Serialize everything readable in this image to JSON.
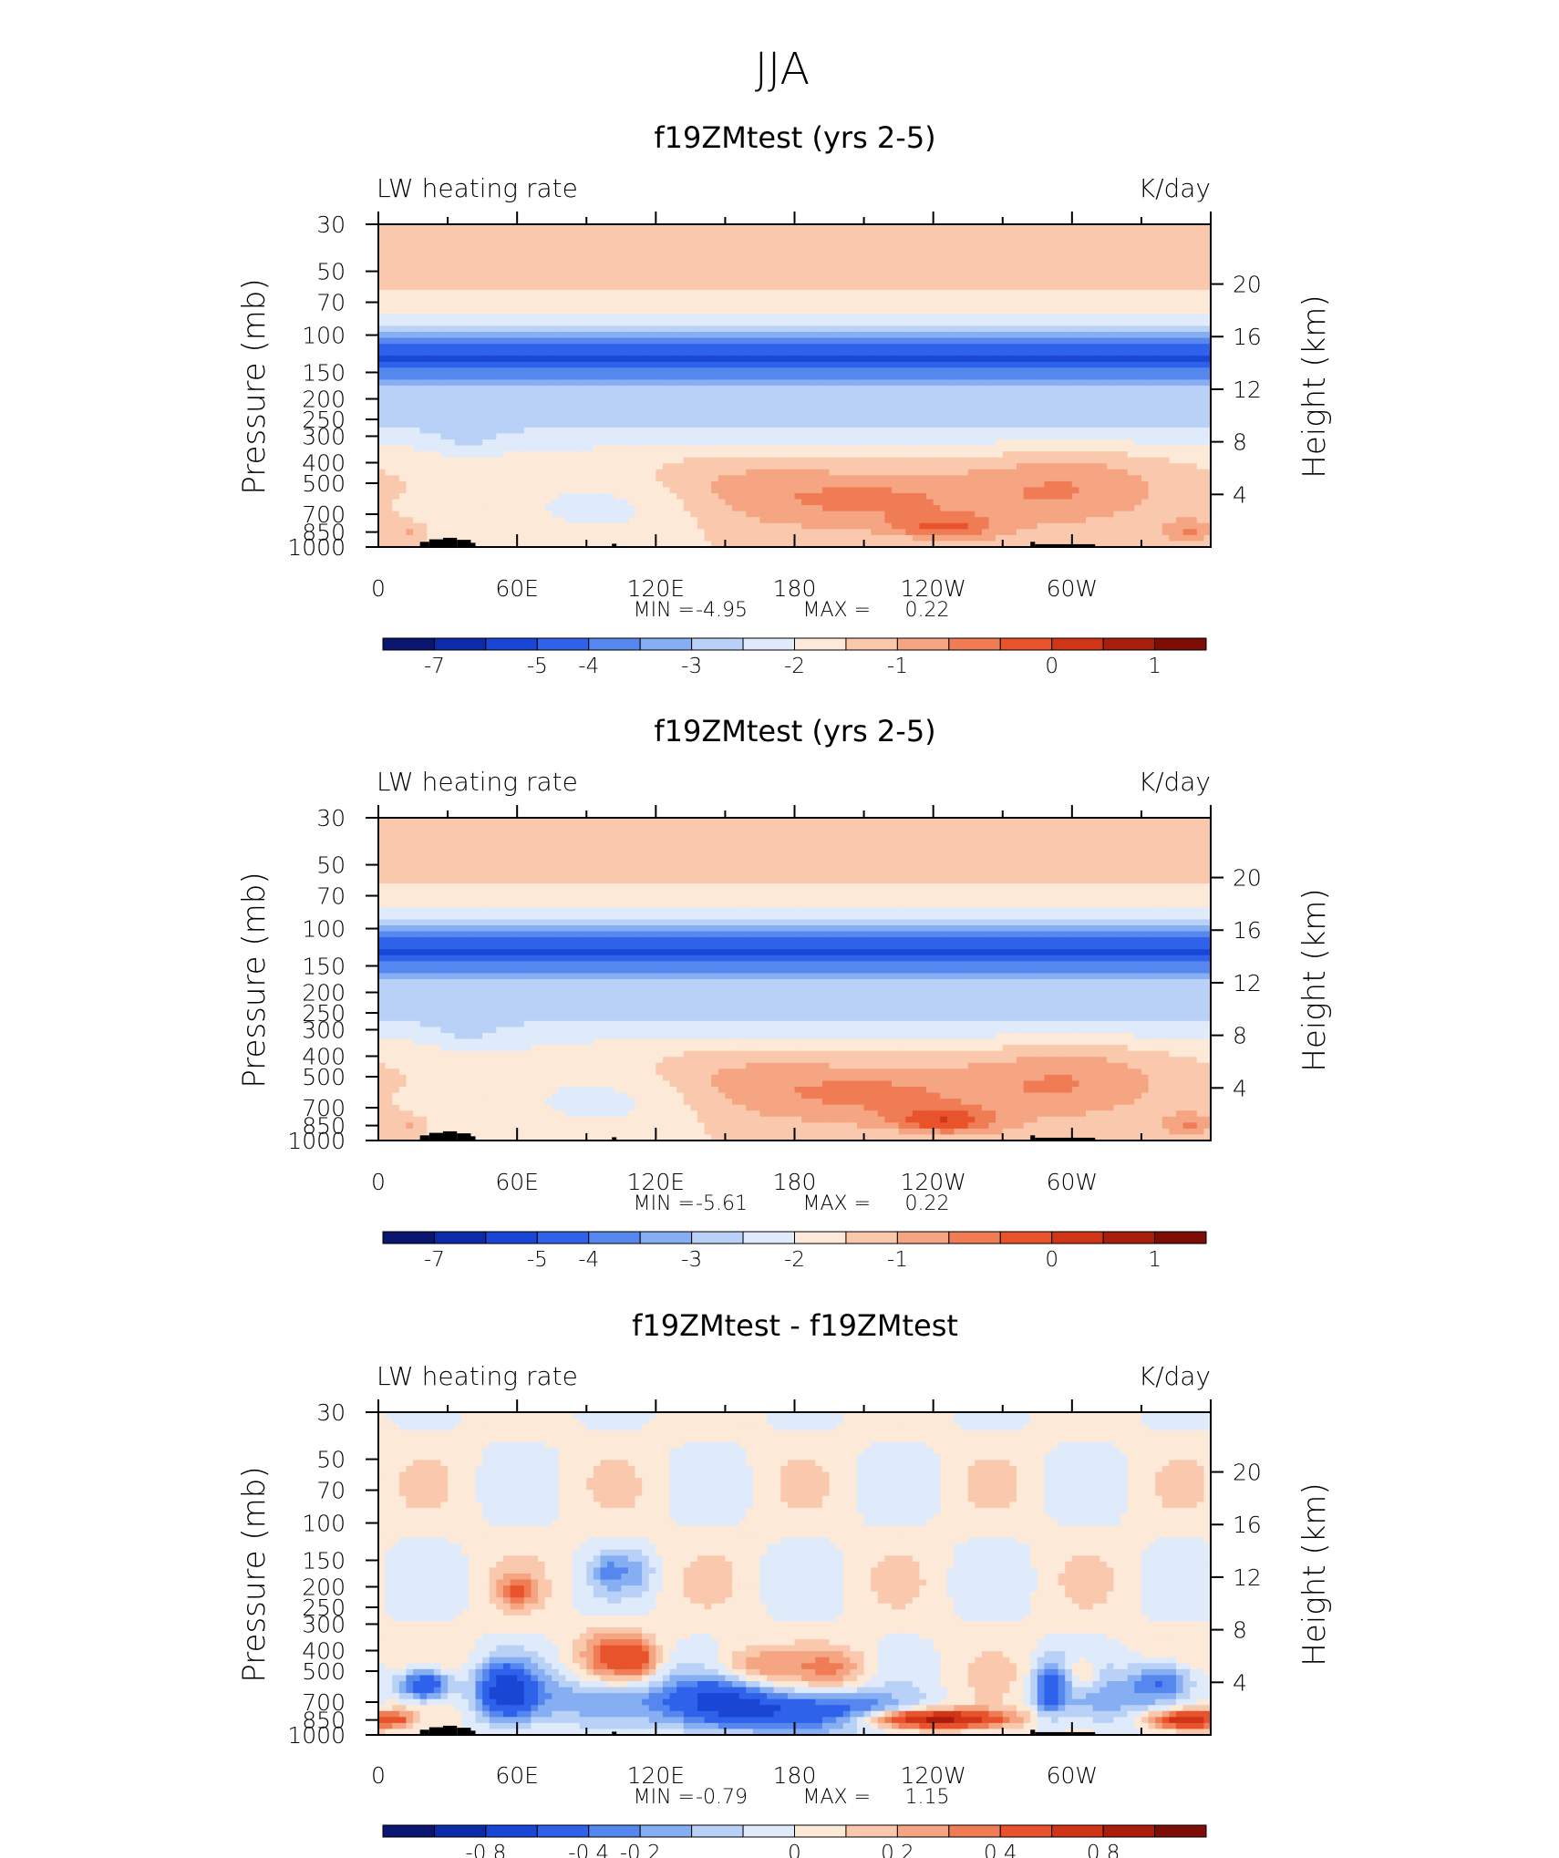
{
  "figure_title": "JJA",
  "chart_data": [
    {
      "type": "heatmap",
      "title": "f19ZMtest (yrs 2-5)",
      "left_label": "LW heating rate",
      "right_label": "K/day",
      "ylabel": "Pressure (mb)",
      "ylabel_right": "Height (km)",
      "x_ticks": [
        "0",
        "60E",
        "120E",
        "180",
        "120W",
        "60W"
      ],
      "x_range_deg": [
        0,
        360
      ],
      "pressure_ticks": [
        30,
        50,
        70,
        100,
        150,
        200,
        250,
        300,
        400,
        500,
        700,
        850,
        1000
      ],
      "pressure_range_mb": [
        30,
        1000
      ],
      "height_ticks_km": [
        20,
        16,
        12,
        8,
        4
      ],
      "stats_text": {
        "min_label": "MIN =",
        "min": "-4.95",
        "max_label": "MAX =",
        "max": "0.22"
      },
      "colorbar_labels": [
        "-7",
        "-5",
        "-4",
        "-3",
        "-2",
        "-1",
        "0",
        "1"
      ],
      "field_kind": "abs",
      "min": -4.95,
      "max": 0.22
    },
    {
      "type": "heatmap",
      "title": "f19ZMtest (yrs 2-5)",
      "left_label": "LW heating rate",
      "right_label": "K/day",
      "ylabel": "Pressure (mb)",
      "ylabel_right": "Height (km)",
      "x_ticks": [
        "0",
        "60E",
        "120E",
        "180",
        "120W",
        "60W"
      ],
      "x_range_deg": [
        0,
        360
      ],
      "pressure_ticks": [
        30,
        50,
        70,
        100,
        150,
        200,
        250,
        300,
        400,
        500,
        700,
        850,
        1000
      ],
      "pressure_range_mb": [
        30,
        1000
      ],
      "height_ticks_km": [
        20,
        16,
        12,
        8,
        4
      ],
      "stats_text": {
        "min_label": "MIN =",
        "min": "-5.61",
        "max_label": "MAX =",
        "max": "0.22"
      },
      "colorbar_labels": [
        "-7",
        "-5",
        "-4",
        "-3",
        "-2",
        "-1",
        "0",
        "1"
      ],
      "field_kind": "abs",
      "min": -5.61,
      "max": 0.22
    },
    {
      "type": "heatmap",
      "title": "f19ZMtest - f19ZMtest",
      "left_label": "LW heating rate",
      "right_label": "K/day",
      "ylabel": "Pressure (mb)",
      "ylabel_right": "Height (km)",
      "x_ticks": [
        "0",
        "60E",
        "120E",
        "180",
        "120W",
        "60W"
      ],
      "x_range_deg": [
        0,
        360
      ],
      "pressure_ticks": [
        30,
        50,
        70,
        100,
        150,
        200,
        250,
        300,
        400,
        500,
        700,
        850,
        1000
      ],
      "pressure_range_mb": [
        30,
        1000
      ],
      "height_ticks_km": [
        20,
        16,
        12,
        8,
        4
      ],
      "stats_text": {
        "min_label": "MIN =",
        "min": "-0.79",
        "max_label": "MAX =",
        "max": "1.15"
      },
      "colorbar_labels": [
        "-0.8",
        "-0.4",
        "-0.2",
        "0",
        "0.2",
        "0.4",
        "0.8"
      ],
      "field_kind": "diff",
      "min": -0.79,
      "max": 1.15
    }
  ],
  "palette": [
    "#0a1670",
    "#0d2aa8",
    "#1a46d6",
    "#2f62ea",
    "#5587ef",
    "#86aef3",
    "#b9d1f6",
    "#dfeafb",
    "#fde9d8",
    "#fac9ad",
    "#f6a583",
    "#f07c55",
    "#e8532c",
    "#cf3516",
    "#a91d0c",
    "#7d0d06"
  ],
  "terrain_color": "#000000"
}
